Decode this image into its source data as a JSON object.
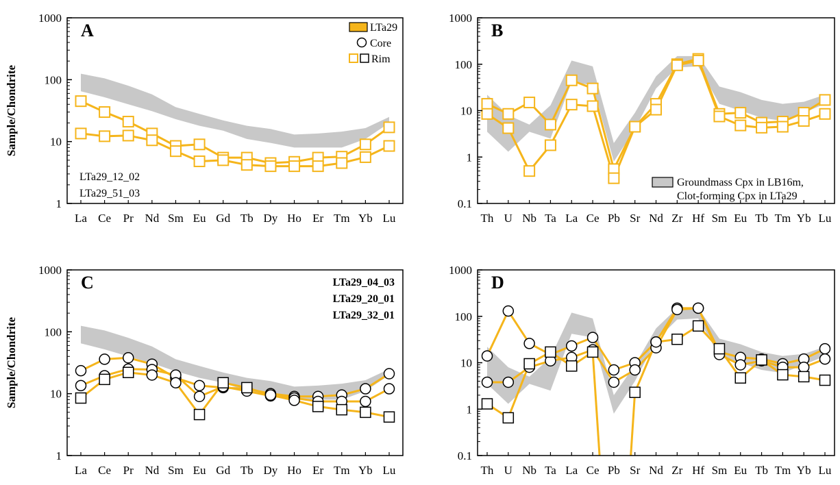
{
  "colors": {
    "line": "#f5b51b",
    "band": "#c8c8c8",
    "frame": "#000000",
    "background": "#ffffff"
  },
  "chart_data": [
    {
      "id": "A",
      "type": "line",
      "panel_label": "A",
      "ylabel": "Sample/Chondrite",
      "yscale": "log",
      "ylim": [
        1,
        1000
      ],
      "yticks": [
        "1",
        "10",
        "100",
        "1000"
      ],
      "categories": [
        "La",
        "Ce",
        "Pr",
        "Nd",
        "Sm",
        "Eu",
        "Gd",
        "Tb",
        "Dy",
        "Ho",
        "Er",
        "Tm",
        "Yb",
        "Lu"
      ],
      "band": {
        "upper": [
          125,
          105,
          80,
          58,
          36,
          28,
          22,
          18,
          16,
          13,
          13.5,
          14.5,
          16.5,
          25
        ],
        "lower": [
          65,
          52,
          40,
          31,
          23,
          18,
          15,
          11,
          9.5,
          8,
          8,
          8,
          11,
          20
        ]
      },
      "series": [
        {
          "values": [
            45,
            30,
            21,
            13.5,
            8.5,
            9,
            5.5,
            5.5,
            4.5,
            4.7,
            5.5,
            5.7,
            9,
            17
          ],
          "markers": [
            "rim",
            "rim",
            "rim",
            "rim",
            "rim",
            "rim",
            "rim",
            "rim",
            "rim",
            "rim",
            "rim",
            "rim",
            "rim",
            "rim"
          ]
        },
        {
          "values": [
            13.5,
            12.2,
            12.5,
            10.5,
            7,
            4.8,
            5,
            4.2,
            4,
            4,
            4,
            4.5,
            5.6,
            8.5
          ],
          "markers": [
            "rim",
            "rim",
            "rim",
            "rim",
            "rim",
            "rim",
            "rim",
            "rim",
            "rim",
            "rim",
            "rim",
            "rim",
            "rim",
            "rim"
          ]
        }
      ],
      "legend": [
        {
          "kind": "band-fill",
          "label": "LTa29"
        },
        {
          "kind": "circle",
          "label": "Core"
        },
        {
          "kind": "square-pair",
          "label": "Rim"
        }
      ],
      "annotations": [
        "LTa29_12_02",
        "LTa29_51_03"
      ]
    },
    {
      "id": "B",
      "type": "line",
      "panel_label": "B",
      "ylabel": "",
      "yscale": "log",
      "ylim": [
        0.1,
        1000
      ],
      "yticks": [
        "0.1",
        "1",
        "10",
        "100",
        "1000"
      ],
      "categories": [
        "Th",
        "U",
        "Nb",
        "Ta",
        "La",
        "Ce",
        "Pb",
        "Sr",
        "Nd",
        "Zr",
        "Hf",
        "Sm",
        "Eu",
        "Tb",
        "Tm",
        "Yb",
        "Lu"
      ],
      "band": {
        "upper": [
          22,
          8,
          5,
          13,
          120,
          90,
          2,
          9,
          55,
          150,
          150,
          33,
          25,
          17,
          14,
          15.5,
          22
        ],
        "lower": [
          3.5,
          1.3,
          3.5,
          2.5,
          42,
          35,
          0.8,
          4,
          30,
          85,
          90,
          14,
          10,
          7,
          6,
          9,
          14
        ]
      },
      "series": [
        {
          "values": [
            14,
            8.5,
            15,
            5,
            45,
            30,
            0.55,
            4.5,
            14,
            100,
            130,
            8.5,
            9,
            5.5,
            5.8,
            9,
            17
          ],
          "markers": [
            "rim",
            "rim",
            "rim",
            "rim",
            "rim",
            "rim",
            "rim",
            "rim",
            "rim",
            "rim",
            "rim",
            "rim",
            "rim",
            "rim",
            "rim",
            "rim",
            "rim"
          ]
        },
        {
          "values": [
            8.5,
            4.2,
            0.5,
            1.8,
            13.5,
            12.5,
            0.35,
            4.5,
            10.5,
            95,
            120,
            7.5,
            4.8,
            4.3,
            4.5,
            6,
            8.5
          ],
          "markers": [
            "rim",
            "rim",
            "rim",
            "rim",
            "rim",
            "rim",
            "rim",
            "rim",
            "rim",
            "rim",
            "rim",
            "rim",
            "rim",
            "rim",
            "rim",
            "rim",
            "rim"
          ]
        }
      ],
      "legend": [
        {
          "kind": "band-fill",
          "label": "Groundmass Cpx in LB16m,"
        },
        {
          "kind": "none",
          "label": "Clot-forming Cpx in LTa29"
        }
      ],
      "annotations": []
    },
    {
      "id": "C",
      "type": "line",
      "panel_label": "C",
      "ylabel": "Sample/Chondrite",
      "yscale": "log",
      "ylim": [
        1,
        1000
      ],
      "yticks": [
        "1",
        "10",
        "100",
        "1000"
      ],
      "categories": [
        "La",
        "Ce",
        "Pr",
        "Nd",
        "Sm",
        "Eu",
        "Gd",
        "Tb",
        "Dy",
        "Ho",
        "Er",
        "Tm",
        "Yb",
        "Lu"
      ],
      "band": {
        "upper": [
          125,
          105,
          80,
          58,
          36,
          28,
          22,
          18,
          16,
          13,
          13.5,
          14.5,
          16.5,
          25
        ],
        "lower": [
          65,
          52,
          40,
          31,
          23,
          18,
          15,
          11,
          9.5,
          8,
          8,
          8,
          11,
          20
        ]
      },
      "series": [
        {
          "values": [
            23.5,
            36,
            38,
            30,
            18,
            13.5,
            12.5,
            12,
            10,
            9,
            9,
            9.5,
            12,
            21
          ],
          "markers": [
            "core",
            "core",
            "core",
            "core",
            "core",
            "core",
            "core",
            "core",
            "core",
            "core",
            "core",
            "core",
            "core",
            "core"
          ]
        },
        {
          "values": [
            13.5,
            19.5,
            25,
            24.5,
            20,
            9,
            13,
            11,
            9.2,
            8.5,
            7.5,
            7.5,
            7.5,
            12
          ],
          "markers": [
            "core",
            "core",
            "core",
            "core",
            "core",
            "core",
            "core",
            "core",
            "core",
            "core",
            "core",
            "core",
            "core",
            "core"
          ]
        },
        {
          "values": [
            8.5,
            17,
            22,
            20,
            15,
            4.6,
            15,
            12.5,
            9.5,
            7.8,
            6.2,
            5.5,
            5,
            4.2
          ],
          "markers": [
            "rim",
            "rim",
            "rim",
            "core",
            "core",
            "rim",
            "rim",
            "rim",
            "core",
            "core",
            "rim",
            "rim",
            "rim",
            "rim"
          ]
        }
      ],
      "legend": [],
      "annotations_bold": [
        "LTa29_04_03",
        "LTa29_20_01",
        "LTa29_32_01"
      ]
    },
    {
      "id": "D",
      "type": "line",
      "panel_label": "D",
      "ylabel": "",
      "yscale": "log",
      "ylim": [
        0.1,
        1000
      ],
      "yticks": [
        "0.1",
        "1",
        "10",
        "100",
        "1000"
      ],
      "categories": [
        "Th",
        "U",
        "Nb",
        "Ta",
        "La",
        "Ce",
        "Pb",
        "Sr",
        "Nd",
        "Zr",
        "Hf",
        "Sm",
        "Eu",
        "Tb",
        "Tm",
        "Yb",
        "Lu"
      ],
      "band": {
        "upper": [
          22,
          8,
          5,
          13,
          120,
          90,
          2,
          9,
          55,
          150,
          150,
          33,
          25,
          17,
          14,
          15.5,
          22
        ],
        "lower": [
          3.5,
          1.3,
          3.5,
          2.5,
          42,
          35,
          0.8,
          4,
          30,
          85,
          90,
          14,
          10,
          7,
          6,
          9,
          14
        ]
      },
      "series": [
        {
          "values": [
            14,
            130,
            26,
            15,
            23,
            35,
            7,
            10,
            28,
            150,
            150,
            17,
            13,
            12,
            9.5,
            12,
            20
          ],
          "markers": [
            "core",
            "core",
            "core",
            "core",
            "core",
            "core",
            "core",
            "core",
            "core",
            "core",
            "core",
            "core",
            "core",
            "core",
            "core",
            "core",
            "core"
          ]
        },
        {
          "values": [
            3.8,
            3.8,
            8,
            11,
            13,
            19,
            3.8,
            7,
            21,
            140,
            150,
            15,
            9,
            11,
            8,
            8,
            12
          ],
          "markers": [
            "core",
            "core",
            "core",
            "core",
            "core",
            "core",
            "core",
            "core",
            "core",
            "core",
            "core",
            "core",
            "core",
            "core",
            "core",
            "core",
            "core"
          ]
        },
        {
          "values": [
            1.3,
            0.65,
            9.5,
            17,
            8.5,
            17,
            null,
            2.3,
            28,
            32,
            62,
            20,
            4.7,
            11.5,
            5.5,
            5,
            4.2
          ],
          "markers": [
            "rim",
            "rim",
            "rim",
            "rim",
            "rim",
            "rim",
            "none",
            "rim",
            "core",
            "rim",
            "rim",
            "rim",
            "rim",
            "rim",
            "rim",
            "rim",
            "rim"
          ],
          "gap_to_floor": [
            5,
            7
          ]
        }
      ],
      "legend": [],
      "annotations": []
    }
  ]
}
